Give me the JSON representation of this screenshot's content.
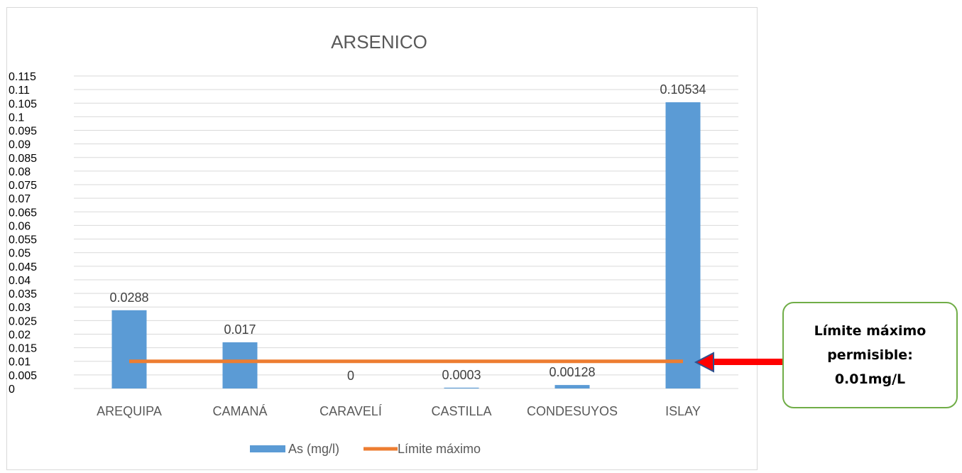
{
  "chart_data": {
    "type": "bar",
    "title": "ARSENICO",
    "categories": [
      "AREQUIPA",
      "CAMANÁ",
      "CARAVELÍ",
      "CASTILLA",
      "CONDESUYOS",
      "ISLAY"
    ],
    "series": [
      {
        "name": "As (mg/l)",
        "type": "bar",
        "color": "#5b9bd5",
        "values": [
          0.0288,
          0.017,
          0,
          0.0003,
          0.00128,
          0.10534
        ],
        "labels": [
          "0.0288",
          "0.017",
          "0",
          "0.0003",
          "0.00128",
          "0.10534"
        ]
      },
      {
        "name": "Límite máximo",
        "type": "line",
        "color": "#ed7d31",
        "values": [
          0.01,
          0.01,
          0.01,
          0.01,
          0.01,
          0.01
        ]
      }
    ],
    "ylim": [
      0,
      0.115
    ],
    "yticks": [
      "0",
      "0.005",
      "0.01",
      "0.015",
      "0.02",
      "0.025",
      "0.03",
      "0.035",
      "0.04",
      "0.045",
      "0.05",
      "0.055",
      "0.06",
      "0.065",
      "0.07",
      "0.075",
      "0.08",
      "0.085",
      "0.09",
      "0.095",
      "0.1",
      "0.105",
      "0.11",
      "0.115"
    ],
    "grid": true,
    "legend": "bottom"
  },
  "callout": {
    "lines": [
      "Límite máximo",
      "permisible:",
      "0.01mg/L"
    ],
    "border_color": "#70ad47",
    "arrow_color": "#ff0000"
  }
}
